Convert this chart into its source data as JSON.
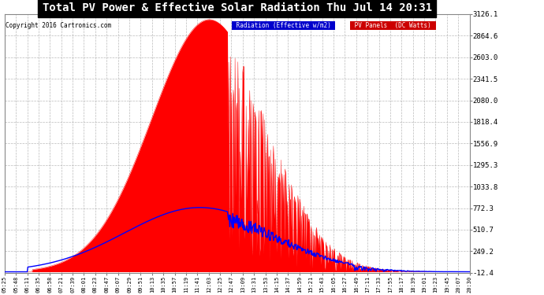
{
  "title": "Total PV Power & Effective Solar Radiation Thu Jul 14 20:31",
  "copyright": "Copyright 2016 Cartronics.com",
  "legend_radiation": "Radiation (Effective w/m2)",
  "legend_pv": "PV Panels (DC Watts)",
  "bg_color": "#ffffff",
  "plot_bg_color": "#ffffff",
  "grid_color": "#aaaaaa",
  "radiation_color": "#0000ff",
  "pv_fill_color": "#ff0000",
  "title_color": "#000000",
  "title_bg_color": "#000000",
  "copyright_color": "#000000",
  "legend_rad_bg": "#0000cc",
  "legend_pv_bg": "#cc0000",
  "yticks": [
    3126.1,
    2864.6,
    2603.0,
    2341.5,
    2080.0,
    1818.4,
    1556.9,
    1295.3,
    1033.8,
    772.3,
    510.7,
    249.2,
    -12.4
  ],
  "ymin": -12.4,
  "ymax": 3126.1,
  "xtick_labels": [
    "05:25",
    "05:48",
    "06:11",
    "06:35",
    "06:58",
    "07:21",
    "07:39",
    "08:01",
    "08:23",
    "08:47",
    "09:07",
    "09:29",
    "09:51",
    "10:13",
    "10:35",
    "10:57",
    "11:19",
    "11:41",
    "12:03",
    "12:25",
    "12:47",
    "13:09",
    "13:31",
    "13:53",
    "14:15",
    "14:37",
    "14:59",
    "15:21",
    "15:43",
    "16:05",
    "16:27",
    "16:49",
    "17:11",
    "17:33",
    "17:55",
    "18:17",
    "18:39",
    "19:01",
    "19:23",
    "19:45",
    "20:07",
    "20:30"
  ]
}
